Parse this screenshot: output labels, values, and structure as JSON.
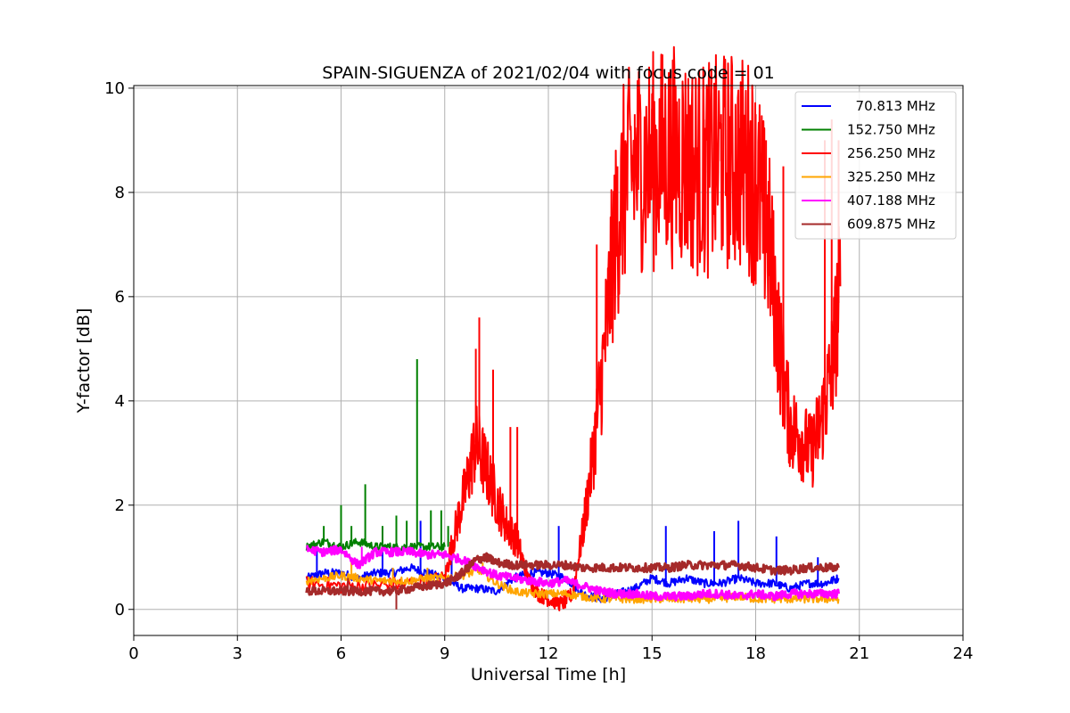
{
  "chart_data": {
    "type": "line",
    "title": "SPAIN-SIGUENZA of 2021/02/04 with focus code = 01",
    "xlabel": "Universal Time [h]",
    "ylabel": "Y-factor [dB]",
    "xlim": [
      0,
      24
    ],
    "ylim": [
      -0.5,
      10.05
    ],
    "xticks": [
      "0",
      "3",
      "6",
      "9",
      "12",
      "15",
      "18",
      "21",
      "24"
    ],
    "yticks": [
      "0",
      "2",
      "4",
      "6",
      "8",
      "10"
    ],
    "grid": true,
    "legend_position": "top-right",
    "series": [
      {
        "name": "  70.813 MHz",
        "color": "#0000ff",
        "x": [
          5.0,
          5.5,
          6.0,
          6.5,
          7.0,
          7.5,
          8.0,
          8.5,
          9.0,
          9.5,
          10.0,
          10.5,
          11.0,
          11.5,
          12.0,
          12.5,
          13.0,
          13.5,
          14.0,
          14.5,
          15.0,
          15.5,
          16.0,
          16.5,
          17.0,
          17.5,
          18.0,
          18.5,
          19.0,
          19.5,
          20.0,
          20.4
        ],
        "y": [
          0.6,
          0.7,
          0.7,
          0.6,
          0.7,
          0.7,
          0.8,
          0.7,
          0.6,
          0.4,
          0.4,
          0.35,
          0.6,
          0.7,
          0.7,
          0.6,
          0.3,
          0.2,
          0.3,
          0.4,
          0.6,
          0.5,
          0.6,
          0.5,
          0.5,
          0.6,
          0.5,
          0.5,
          0.4,
          0.5,
          0.5,
          0.6
        ],
        "peaks": [
          [
            5.3,
            1.2
          ],
          [
            7.2,
            1.3
          ],
          [
            8.3,
            1.7
          ],
          [
            9.2,
            1.0
          ],
          [
            12.3,
            1.6
          ],
          [
            15.4,
            1.6
          ],
          [
            16.8,
            1.5
          ],
          [
            17.5,
            1.7
          ],
          [
            18.6,
            1.4
          ],
          [
            19.8,
            1.0
          ]
        ]
      },
      {
        "name": "152.750 MHz",
        "color": "#008000",
        "x": [
          5.0,
          5.5,
          6.0,
          6.5,
          7.0,
          7.5,
          8.0,
          8.5,
          9.0
        ],
        "y": [
          1.2,
          1.3,
          1.2,
          1.3,
          1.2,
          1.2,
          1.2,
          1.2,
          1.2
        ],
        "peaks": [
          [
            5.5,
            1.6
          ],
          [
            6.0,
            2.0
          ],
          [
            6.3,
            1.6
          ],
          [
            6.7,
            2.4
          ],
          [
            7.2,
            1.6
          ],
          [
            7.6,
            1.8
          ],
          [
            7.9,
            1.7
          ],
          [
            8.2,
            4.8
          ],
          [
            8.6,
            1.9
          ],
          [
            8.9,
            1.9
          ],
          [
            9.1,
            1.6
          ]
        ]
      },
      {
        "name": "256.250 MHz",
        "color": "#ff0000",
        "x": [
          5.0,
          6.0,
          7.0,
          8.0,
          9.0,
          9.3,
          9.6,
          9.9,
          10.2,
          10.5,
          10.8,
          11.1,
          11.4,
          11.7,
          12.0,
          12.4,
          12.7,
          13.0,
          13.3,
          13.6,
          13.9,
          14.2,
          14.6,
          15.0,
          15.4,
          15.8,
          16.2,
          16.6,
          17.0,
          17.4,
          17.8,
          18.1,
          18.4,
          18.7,
          19.0,
          19.3,
          19.6,
          19.9,
          20.2,
          20.45
        ],
        "y": [
          0.5,
          0.45,
          0.45,
          0.5,
          0.6,
          1.5,
          2.3,
          3.2,
          2.7,
          2.1,
          1.6,
          1.3,
          0.6,
          0.3,
          0.2,
          0.1,
          0.3,
          1.5,
          3.0,
          4.8,
          7.0,
          8.2,
          8.6,
          8.6,
          8.7,
          8.7,
          8.5,
          8.4,
          8.6,
          8.6,
          8.5,
          8.0,
          7.0,
          5.0,
          3.5,
          3.3,
          3.0,
          3.6,
          4.6,
          6.2
        ],
        "peaks": [
          [
            9.9,
            5.0
          ],
          [
            10.0,
            5.6
          ],
          [
            10.4,
            4.6
          ],
          [
            10.9,
            3.5
          ],
          [
            11.1,
            3.5
          ],
          [
            13.4,
            7.0
          ],
          [
            14.0,
            8.5
          ],
          [
            14.5,
            9.5
          ],
          [
            15.0,
            9.6
          ],
          [
            15.5,
            9.5
          ],
          [
            16.0,
            9.5
          ],
          [
            16.5,
            9.4
          ],
          [
            17.0,
            9.5
          ],
          [
            17.5,
            9.5
          ],
          [
            18.0,
            9.5
          ],
          [
            18.3,
            9.0
          ],
          [
            18.8,
            8.5
          ],
          [
            20.0,
            9.0
          ],
          [
            20.2,
            9.4
          ],
          [
            20.4,
            9.0
          ]
        ]
      },
      {
        "name": "325.250 MHz",
        "color": "#ffa500",
        "x": [
          5.0,
          5.5,
          6.0,
          6.5,
          7.0,
          7.5,
          8.0,
          8.5,
          9.0,
          9.5,
          10.0,
          10.5,
          11.0,
          11.5,
          12.0,
          12.5,
          13.0,
          13.5,
          14.0,
          14.5,
          15.0,
          15.5,
          16.0,
          16.5,
          17.0,
          17.5,
          18.0,
          18.5,
          19.0,
          19.5,
          20.0,
          20.4
        ],
        "y": [
          0.55,
          0.6,
          0.65,
          0.6,
          0.55,
          0.55,
          0.55,
          0.6,
          0.6,
          0.65,
          0.75,
          0.5,
          0.35,
          0.3,
          0.3,
          0.3,
          0.25,
          0.2,
          0.2,
          0.2,
          0.2,
          0.2,
          0.2,
          0.2,
          0.2,
          0.25,
          0.2,
          0.2,
          0.2,
          0.2,
          0.2,
          0.2
        ],
        "peaks": [
          [
            6.3,
            0.9
          ],
          [
            7.5,
            0.8
          ],
          [
            8.5,
            0.8
          ],
          [
            10.1,
            0.9
          ]
        ]
      },
      {
        "name": "407.188 MHz",
        "color": "#ff00ff",
        "x": [
          5.0,
          5.5,
          6.0,
          6.5,
          7.0,
          7.5,
          8.0,
          8.5,
          9.0,
          9.5,
          10.0,
          10.5,
          11.0,
          11.5,
          12.0,
          12.5,
          13.0,
          13.5,
          14.0,
          14.5,
          15.0,
          15.5,
          16.0,
          16.5,
          17.0,
          17.5,
          18.0,
          18.5,
          19.0,
          19.5,
          20.0,
          20.4
        ],
        "y": [
          1.15,
          1.1,
          1.15,
          0.85,
          1.1,
          1.1,
          1.1,
          1.05,
          1.05,
          0.95,
          0.8,
          0.65,
          0.6,
          0.55,
          0.5,
          0.55,
          0.45,
          0.35,
          0.3,
          0.3,
          0.25,
          0.25,
          0.25,
          0.3,
          0.3,
          0.25,
          0.3,
          0.25,
          0.3,
          0.3,
          0.3,
          0.3
        ],
        "peaks": [
          [
            6.6,
            1.2
          ],
          [
            7.2,
            1.2
          ],
          [
            8.0,
            1.2
          ]
        ]
      },
      {
        "name": "609.875 MHz",
        "color": "#a52a2a",
        "x": [
          5.0,
          5.5,
          6.0,
          6.5,
          7.0,
          7.5,
          8.0,
          8.5,
          9.0,
          9.3,
          9.6,
          9.9,
          10.2,
          10.5,
          11.0,
          11.5,
          12.0,
          12.5,
          13.0,
          13.5,
          14.0,
          14.5,
          15.0,
          15.5,
          16.0,
          16.5,
          17.0,
          17.5,
          18.0,
          18.5,
          19.0,
          19.5,
          20.0,
          20.4
        ],
        "y": [
          0.35,
          0.35,
          0.35,
          0.35,
          0.35,
          0.35,
          0.4,
          0.45,
          0.5,
          0.6,
          0.75,
          0.95,
          1.0,
          0.9,
          0.85,
          0.85,
          0.85,
          0.85,
          0.8,
          0.8,
          0.8,
          0.8,
          0.8,
          0.8,
          0.85,
          0.85,
          0.85,
          0.85,
          0.8,
          0.75,
          0.75,
          0.8,
          0.8,
          0.8
        ],
        "peaks": [
          [
            7.6,
            0.0
          ],
          [
            6.2,
            0.6
          ],
          [
            10.2,
            1.05
          ]
        ]
      }
    ]
  }
}
